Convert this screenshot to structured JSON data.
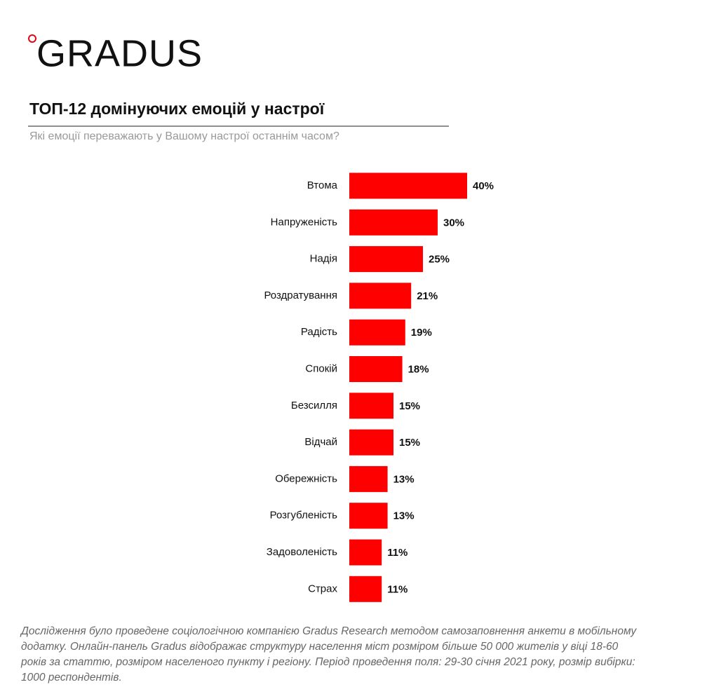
{
  "logo": "GRADUS",
  "chart_data": {
    "type": "bar",
    "orientation": "horizontal",
    "title": "ТОП-12 домінуючих емоцій у настрої",
    "subtitle": "Які емоції переважають у Вашому настрої останнім часом?",
    "categories": [
      "Втома",
      "Напруженість",
      "Надія",
      "Роздратування",
      "Радість",
      "Спокій",
      "Безсилля",
      "Відчай",
      "Обережність",
      "Розгубленість",
      "Задоволеність",
      "Страх"
    ],
    "values": [
      40,
      30,
      25,
      21,
      19,
      18,
      15,
      15,
      13,
      13,
      11,
      11
    ],
    "value_labels": [
      "40%",
      "30%",
      "25%",
      "21%",
      "19%",
      "18%",
      "15%",
      "15%",
      "13%",
      "13%",
      "11%",
      "11%"
    ],
    "color": "#ff0000"
  },
  "footnote": "Дослідження було проведене соціологічною компанією Gradus Research методом самозаповнення анкети в мобільному додатку. Онлайн-панель Gradus відображає структуру населення міст розміром більше 50 000 жителів у віці 18-60 років за статтю, розміром населеного пункту і регіону. Період проведення поля: 29-30 січня 2021 року, розмір вибірки: 1000 респондентів."
}
